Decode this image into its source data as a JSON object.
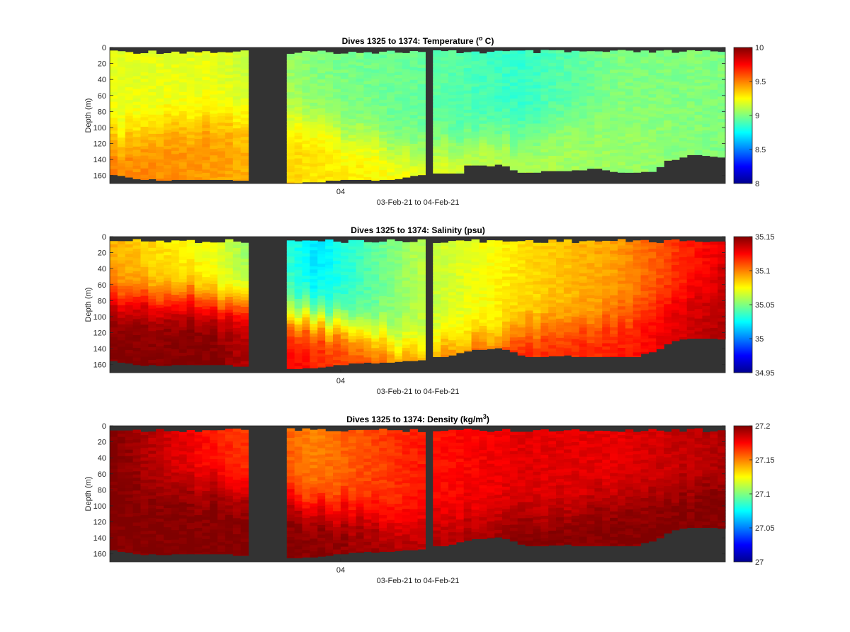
{
  "chart_data": [
    {
      "type": "heatmap",
      "title_main": "Dives 1325 to 1374: Temperature (",
      "title_sup": "o",
      "title_end": " C)",
      "ylabel": "Depth (m)",
      "xlabel": "03-Feb-21 to 04-Feb-21",
      "x_tick_labels": [
        "04"
      ],
      "y_ticks": [
        0,
        20,
        40,
        60,
        80,
        100,
        120,
        140,
        160
      ],
      "ylim": [
        0,
        170
      ],
      "colorbar": {
        "min": 8,
        "max": 10,
        "ticks": [
          "10",
          "9.5",
          "9",
          "8.5",
          "8"
        ]
      },
      "colormap": "jet",
      "missing_color": "#333333",
      "dives": [
        "1325 to 1374"
      ],
      "segments": [
        [
          0,
          17
        ],
        [
          23,
          41
        ],
        [
          42,
          78
        ]
      ],
      "bottom_depths": [
        159,
        160,
        162,
        164,
        165,
        164,
        166,
        166,
        165,
        165,
        165,
        165,
        165,
        165,
        165,
        165,
        166,
        166,
        0,
        0,
        0,
        0,
        0,
        170,
        170,
        168,
        168,
        168,
        166,
        166,
        165,
        165,
        165,
        165,
        166,
        165,
        165,
        164,
        162,
        160,
        159,
        0,
        157,
        157,
        157,
        157,
        147,
        147,
        147,
        148,
        146,
        148,
        153,
        156,
        156,
        156,
        154,
        154,
        154,
        154,
        153,
        153,
        151,
        151,
        153,
        155,
        156,
        156,
        156,
        155,
        155,
        149,
        141,
        140,
        137,
        134,
        134,
        135,
        136,
        137
      ],
      "profile": {
        "surface_values": [
          9.2,
          9.2,
          9.0,
          8.95,
          8.85,
          9.0,
          9.0
        ],
        "bottom_values": [
          9.5,
          9.45,
          9.3,
          9.25,
          9.1,
          9.05,
          9.0
        ],
        "thermocline_depth": [
          115,
          80,
          95,
          130,
          110,
          90,
          70
        ]
      }
    },
    {
      "type": "heatmap",
      "title_main": "Dives 1325 to 1374: Salinity (psu)",
      "title_sup": "",
      "title_end": "",
      "ylabel": "Depth (m)",
      "xlabel": "03-Feb-21 to 04-Feb-21",
      "x_tick_labels": [
        "04"
      ],
      "y_ticks": [
        0,
        20,
        40,
        60,
        80,
        100,
        120,
        140,
        160
      ],
      "ylim": [
        0,
        170
      ],
      "colorbar": {
        "min": 34.95,
        "max": 35.15,
        "ticks": [
          "35.15",
          "35.1",
          "35.05",
          "35",
          "34.95"
        ]
      },
      "colormap": "jet",
      "missing_color": "#333333",
      "bottom_depths": [
        155,
        157,
        158,
        160,
        161,
        160,
        161,
        161,
        160,
        160,
        160,
        160,
        160,
        160,
        160,
        160,
        162,
        162,
        0,
        0,
        0,
        0,
        0,
        165,
        165,
        164,
        164,
        163,
        162,
        160,
        160,
        158,
        158,
        157,
        158,
        157,
        157,
        156,
        155,
        155,
        154,
        0,
        150,
        150,
        148,
        145,
        143,
        141,
        141,
        140,
        139,
        141,
        144,
        148,
        150,
        150,
        150,
        149,
        149,
        148,
        150,
        150,
        150,
        150,
        150,
        150,
        150,
        150,
        150,
        146,
        144,
        140,
        134,
        130,
        128,
        127,
        127,
        127,
        127,
        128
      ],
      "profile": {
        "surface_values": [
          35.09,
          35.07,
          35.02,
          35.06,
          35.08,
          35.095,
          35.13
        ],
        "bottom_values": [
          35.15,
          35.15,
          35.12,
          35.1,
          35.12,
          35.12,
          35.14
        ],
        "halocline_depth": [
          75,
          80,
          100,
          140,
          120,
          100,
          55
        ]
      }
    },
    {
      "type": "heatmap",
      "title_main": "Dives 1325 to 1374: Density (kg/m",
      "title_sup": "3",
      "title_end": ")",
      "ylabel": "Depth (m)",
      "xlabel": "03-Feb-21 to 04-Feb-21",
      "x_tick_labels": [
        "04"
      ],
      "y_ticks": [
        0,
        20,
        40,
        60,
        80,
        100,
        120,
        140,
        160
      ],
      "ylim": [
        0,
        170
      ],
      "colorbar": {
        "min": 27,
        "max": 27.2,
        "ticks": [
          "27.2",
          "27.15",
          "27.1",
          "27.05",
          "27"
        ]
      },
      "colormap": "jet",
      "missing_color": "#333333",
      "bottom_depths": [
        155,
        157,
        158,
        160,
        161,
        160,
        161,
        161,
        160,
        160,
        160,
        160,
        160,
        160,
        160,
        160,
        162,
        162,
        0,
        0,
        0,
        0,
        0,
        165,
        165,
        164,
        164,
        163,
        162,
        160,
        160,
        158,
        158,
        157,
        158,
        157,
        157,
        156,
        155,
        155,
        154,
        0,
        150,
        150,
        148,
        145,
        143,
        141,
        141,
        140,
        139,
        141,
        144,
        148,
        150,
        150,
        150,
        149,
        149,
        148,
        150,
        150,
        150,
        150,
        150,
        150,
        150,
        150,
        150,
        146,
        144,
        140,
        134,
        130,
        128,
        127,
        127,
        127,
        127,
        128
      ],
      "profile": {
        "surface_values": [
          27.2,
          27.17,
          27.15,
          27.17,
          27.18,
          27.18,
          27.19
        ],
        "bottom_values": [
          27.2,
          27.2,
          27.2,
          27.19,
          27.2,
          27.2,
          27.2
        ],
        "pycnocline_depth": [
          80,
          70,
          100,
          120,
          110,
          90,
          70
        ]
      }
    }
  ]
}
